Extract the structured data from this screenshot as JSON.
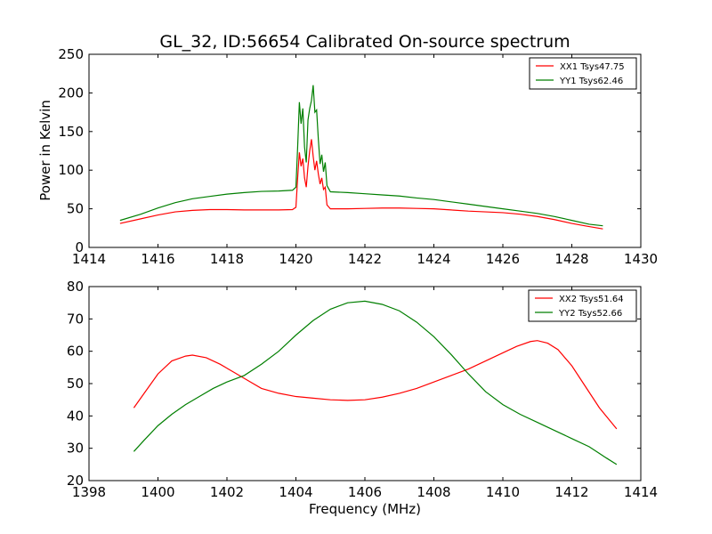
{
  "chart_data": [
    {
      "type": "line",
      "title": "GL_32, ID:56654 Calibrated On-source spectrum",
      "xlabel": "",
      "ylabel": "Power in Kelvin",
      "xlim": [
        1414,
        1430
      ],
      "ylim": [
        0,
        250
      ],
      "xticks": [
        1414,
        1416,
        1418,
        1420,
        1422,
        1424,
        1426,
        1428,
        1430
      ],
      "yticks": [
        0,
        50,
        100,
        150,
        200,
        250
      ],
      "legend_position": "top-right",
      "grid": false,
      "series": [
        {
          "name": "XX1 Tsys47.75",
          "color": "#ff0000",
          "x": [
            1414.9,
            1415.5,
            1416.0,
            1416.5,
            1417.0,
            1417.5,
            1418.0,
            1418.5,
            1419.0,
            1419.5,
            1419.9,
            1420.0,
            1420.05,
            1420.1,
            1420.15,
            1420.2,
            1420.25,
            1420.3,
            1420.35,
            1420.4,
            1420.45,
            1420.5,
            1420.55,
            1420.6,
            1420.65,
            1420.7,
            1420.75,
            1420.8,
            1420.85,
            1420.9,
            1421.0,
            1421.5,
            1422.0,
            1422.5,
            1423.0,
            1423.5,
            1424.0,
            1424.5,
            1425.0,
            1425.5,
            1426.0,
            1426.5,
            1427.0,
            1427.5,
            1428.0,
            1428.5,
            1428.9
          ],
          "y": [
            31,
            37,
            42,
            46,
            48,
            49,
            49,
            48.5,
            48.5,
            48.5,
            49,
            52,
            90,
            123,
            105,
            115,
            90,
            78,
            105,
            125,
            140,
            118,
            100,
            112,
            95,
            82,
            90,
            75,
            78,
            55,
            50,
            50,
            50.5,
            51,
            51,
            50.5,
            50,
            48.5,
            47,
            46,
            45,
            43,
            40,
            36,
            31,
            27,
            24
          ]
        },
        {
          "name": "YY1 Tsys62.46",
          "color": "#007f00",
          "x": [
            1414.9,
            1415.5,
            1416.0,
            1416.5,
            1417.0,
            1417.5,
            1418.0,
            1418.5,
            1419.0,
            1419.5,
            1419.9,
            1420.0,
            1420.05,
            1420.1,
            1420.15,
            1420.2,
            1420.25,
            1420.3,
            1420.35,
            1420.4,
            1420.45,
            1420.5,
            1420.55,
            1420.6,
            1420.65,
            1420.7,
            1420.75,
            1420.8,
            1420.85,
            1420.9,
            1421.0,
            1421.5,
            1422.0,
            1422.5,
            1423.0,
            1423.5,
            1424.0,
            1424.5,
            1425.0,
            1425.5,
            1426.0,
            1426.5,
            1427.0,
            1427.5,
            1428.0,
            1428.5,
            1428.9
          ],
          "y": [
            35,
            43,
            51,
            58,
            63,
            66,
            69,
            71,
            72.5,
            73,
            74,
            78,
            130,
            188,
            160,
            180,
            130,
            110,
            165,
            180,
            190,
            210,
            175,
            178,
            140,
            108,
            120,
            98,
            110,
            80,
            72,
            71,
            69.5,
            68,
            66.5,
            64,
            62,
            59,
            56,
            53,
            50,
            47,
            44,
            40,
            35,
            30,
            28
          ]
        }
      ]
    },
    {
      "type": "line",
      "title": "",
      "xlabel": "Frequency (MHz)",
      "ylabel": "",
      "xlim": [
        1398,
        1414
      ],
      "ylim": [
        20,
        80
      ],
      "xticks": [
        1398,
        1400,
        1402,
        1404,
        1406,
        1408,
        1410,
        1412,
        1414
      ],
      "yticks": [
        20,
        30,
        40,
        50,
        60,
        70,
        80
      ],
      "legend_position": "top-right",
      "grid": false,
      "series": [
        {
          "name": "XX2 Tsys51.64",
          "color": "#ff0000",
          "x": [
            1399.3,
            1399.6,
            1400.0,
            1400.4,
            1400.8,
            1401.0,
            1401.4,
            1401.8,
            1402.2,
            1402.6,
            1403.0,
            1403.5,
            1404.0,
            1404.5,
            1405.0,
            1405.5,
            1406.0,
            1406.5,
            1407.0,
            1407.5,
            1408.0,
            1408.5,
            1409.0,
            1409.5,
            1410.0,
            1410.4,
            1410.8,
            1411.0,
            1411.3,
            1411.6,
            1412.0,
            1412.4,
            1412.8,
            1413.3
          ],
          "y": [
            42.5,
            47,
            53,
            57,
            58.5,
            58.8,
            58,
            56,
            53.5,
            51,
            48.5,
            47,
            46,
            45.5,
            45,
            44.8,
            45,
            45.8,
            47,
            48.5,
            50.5,
            52.5,
            54.5,
            57,
            59.5,
            61.5,
            63,
            63.3,
            62.5,
            60.5,
            55.5,
            49,
            42.5,
            36
          ]
        },
        {
          "name": "YY2 Tsys52.66",
          "color": "#007f00",
          "x": [
            1399.3,
            1399.6,
            1400.0,
            1400.4,
            1400.8,
            1401.2,
            1401.6,
            1402.0,
            1402.5,
            1403.0,
            1403.5,
            1404.0,
            1404.5,
            1405.0,
            1405.5,
            1406.0,
            1406.5,
            1407.0,
            1407.5,
            1408.0,
            1408.5,
            1409.0,
            1409.5,
            1410.0,
            1410.5,
            1411.0,
            1411.5,
            1412.0,
            1412.5,
            1413.0,
            1413.3
          ],
          "y": [
            29,
            32.5,
            37,
            40.5,
            43.5,
            46,
            48.5,
            50.5,
            52.5,
            56,
            60,
            65,
            69.5,
            73,
            75,
            75.5,
            74.5,
            72.5,
            69,
            64.5,
            59,
            53,
            47.5,
            43.5,
            40.5,
            38,
            35.5,
            33,
            30.5,
            27,
            25
          ]
        }
      ]
    }
  ]
}
